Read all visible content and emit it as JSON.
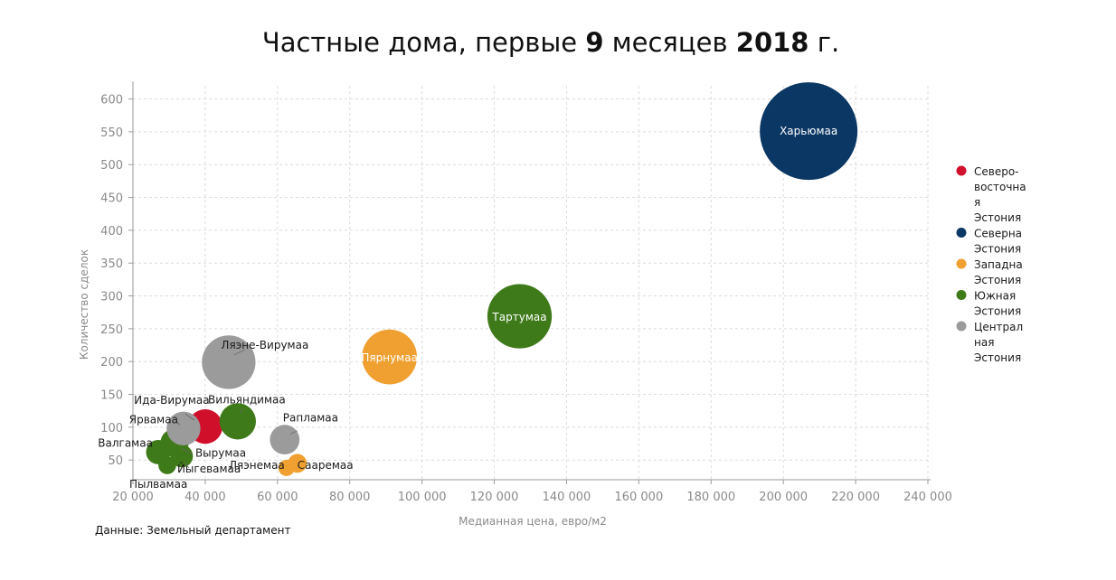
{
  "chart_data": {
    "type": "bubble",
    "title_parts": [
      "Частные дома, первые ",
      "9",
      " месяцев ",
      "2018",
      " г."
    ],
    "xlabel": "Медианная цена, евро/м2",
    "ylabel": "Количество сделок",
    "xlim": [
      20000,
      240000
    ],
    "ylim": [
      20,
      620
    ],
    "x_ticks": [
      20000,
      40000,
      60000,
      80000,
      100000,
      120000,
      140000,
      160000,
      180000,
      200000,
      220000,
      240000
    ],
    "x_tick_labels": [
      "20 000",
      "40 000",
      "60 000",
      "80 000",
      "100 000",
      "120 000",
      "140 000",
      "160 000",
      "180 000",
      "200 000",
      "220 000",
      "240 000"
    ],
    "y_ticks": [
      50,
      100,
      150,
      200,
      250,
      300,
      350,
      400,
      450,
      500,
      550,
      600
    ],
    "y_tick_labels": [
      "50",
      "100",
      "150",
      "200",
      "250",
      "300",
      "350",
      "400",
      "450",
      "500",
      "550",
      "600"
    ],
    "grid": true,
    "legend_position": "right",
    "source": "Данные: Земельный департамент",
    "series": [
      {
        "name": "Северо-восточная Эстония",
        "legend_lines": [
          "Северо-",
          "восточна",
          "я",
          "Эстония"
        ],
        "color": "#d0102a",
        "points": [
          {
            "label": "Ида-Вирумаа",
            "x": 40000,
            "y": 101,
            "size": 101
          }
        ]
      },
      {
        "name": "Северная Эстония",
        "legend_lines": [
          "Северна",
          "Эстония"
        ],
        "color": "#0b3764",
        "points": [
          {
            "label": "Харьюмаа",
            "x": 207000,
            "y": 551,
            "size": 551
          }
        ]
      },
      {
        "name": "Западная Эстония",
        "legend_lines": [
          "Западна",
          "Эстония"
        ],
        "color": "#f0a030",
        "points": [
          {
            "label": "Пярнумаа",
            "x": 91000,
            "y": 207,
            "size": 207
          },
          {
            "label": "Сааремаа",
            "x": 65500,
            "y": 45,
            "size": 45
          },
          {
            "label": "Ляэнемаа",
            "x": 62500,
            "y": 38,
            "size": 38
          }
        ]
      },
      {
        "name": "Южная Эстония",
        "legend_lines": [
          "Южная",
          "Эстония"
        ],
        "color": "#3f7a1a",
        "points": [
          {
            "label": "Тартумаа",
            "x": 127000,
            "y": 269,
            "size": 269
          },
          {
            "label": "Вильяндимаа",
            "x": 49000,
            "y": 109,
            "size": 109
          },
          {
            "label": "Валгамаа",
            "x": 27000,
            "y": 62,
            "size": 62
          },
          {
            "label": "Вырумаа",
            "x": 31500,
            "y": 76,
            "size": 76
          },
          {
            "label": "Пылвамаа",
            "x": 29500,
            "y": 42,
            "size": 42
          },
          {
            "label": "Йыгевамаа",
            "x": 33500,
            "y": 56,
            "size": 56
          }
        ]
      },
      {
        "name": "Центральная Эстония",
        "legend_lines": [
          "Централ",
          "ная",
          "Эстония"
        ],
        "color": "#9b9b9b",
        "points": [
          {
            "label": "Ляэне-Вирумаа",
            "x": 46500,
            "y": 199,
            "size": 199
          },
          {
            "label": "Рапламаа",
            "x": 62000,
            "y": 81,
            "size": 81
          },
          {
            "label": "Ярвамаа",
            "x": 34000,
            "y": 98,
            "size": 98
          }
        ]
      }
    ]
  }
}
